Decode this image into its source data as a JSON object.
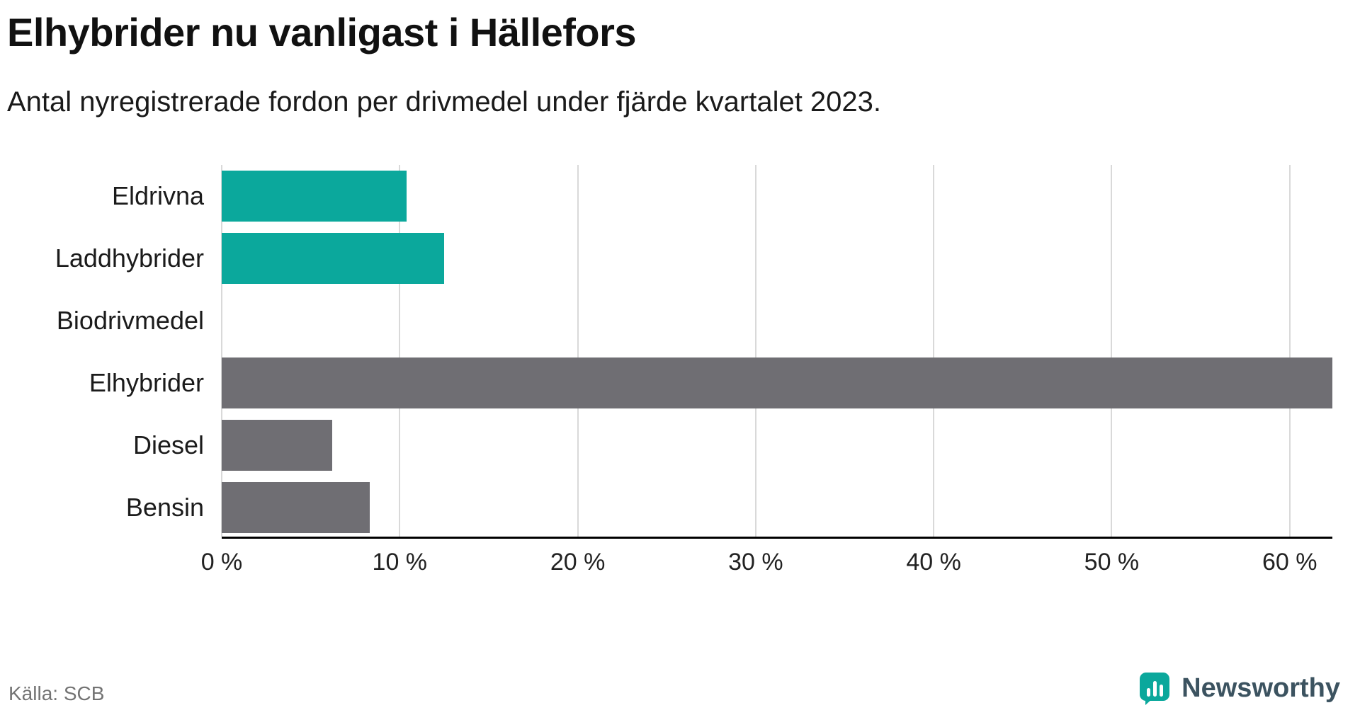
{
  "header": {
    "title": "Elhybrider nu vanligast i Hällefors",
    "subtitle": "Antal nyregistrerade fordon per drivmedel under fjärde kvartalet 2023."
  },
  "footer": {
    "source": "Källa: SCB",
    "brand": "Newsworthy"
  },
  "colors": {
    "teal": "#0ba89c",
    "gray": "#6f6e73",
    "gridline": "#d9d9d9",
    "axis": "#000000",
    "brand_text": "#3c5360"
  },
  "chart_data": {
    "type": "bar",
    "orientation": "horizontal",
    "title": "Elhybrider nu vanligast i Hällefors",
    "subtitle": "Antal nyregistrerade fordon per drivmedel under fjärde kvartalet 2023.",
    "source": "Källa: SCB",
    "categories": [
      "Eldrivna",
      "Laddhybrider",
      "Biodrivmedel",
      "Elhybrider",
      "Diesel",
      "Bensin"
    ],
    "values": [
      10.4,
      12.5,
      0,
      62.4,
      6.2,
      8.3
    ],
    "unit": "%",
    "bar_colors": [
      "#0ba89c",
      "#0ba89c",
      "#6f6e73",
      "#6f6e73",
      "#6f6e73",
      "#6f6e73"
    ],
    "xlim": [
      0,
      62.4
    ],
    "xticks": [
      {
        "value": 0,
        "label": "0 %"
      },
      {
        "value": 10,
        "label": "10 %"
      },
      {
        "value": 20,
        "label": "20 %"
      },
      {
        "value": 30,
        "label": "30 %"
      },
      {
        "value": 40,
        "label": "40 %"
      },
      {
        "value": 50,
        "label": "50 %"
      },
      {
        "value": 60,
        "label": "60 %"
      }
    ],
    "grid": true,
    "legend": false
  }
}
